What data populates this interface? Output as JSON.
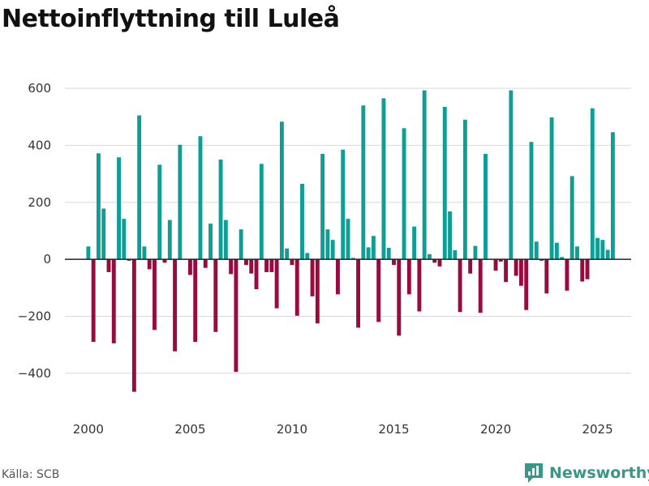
{
  "page": {
    "title": "Nettoinflyttning till Luleå",
    "source": "Källa: SCB",
    "brand": "Newsworthy"
  },
  "colors": {
    "positive": "#0e9e96",
    "negative": "#990a3e",
    "grid": "#d9d9d9",
    "zero": "#222222",
    "brand": "#3a9688"
  },
  "chart_data": {
    "type": "bar",
    "title": "Nettoinflyttning till Luleå",
    "xlabel": "",
    "ylabel": "",
    "xlim": [
      1998.85,
      2026.65
    ],
    "ylim": [
      -520,
      640
    ],
    "y_ticks": [
      600,
      400,
      200,
      0,
      -200,
      -400
    ],
    "y_tick_labels": [
      "600",
      "400",
      "200",
      "0",
      "−200",
      "−400"
    ],
    "x_ticks": [
      2000,
      2005,
      2010,
      2015,
      2020,
      2025
    ],
    "x_tick_labels": [
      "2000",
      "2005",
      "2010",
      "2015",
      "2020",
      "2025"
    ],
    "start_year": 2000.0,
    "step": 0.25,
    "period": "quarterly",
    "values": [
      45,
      -290,
      372,
      178,
      -45,
      -295,
      358,
      142,
      -5,
      -465,
      505,
      45,
      -35,
      -248,
      332,
      -12,
      138,
      -323,
      402,
      0,
      -55,
      -290,
      432,
      -30,
      125,
      -255,
      350,
      138,
      -52,
      -395,
      105,
      -20,
      -50,
      -105,
      335,
      -45,
      -45,
      -172,
      483,
      38,
      -20,
      -198,
      265,
      22,
      -130,
      -225,
      370,
      105,
      68,
      -123,
      385,
      142,
      5,
      -240,
      540,
      42,
      82,
      -220,
      565,
      40,
      -20,
      -268,
      460,
      -123,
      115,
      -183,
      593,
      18,
      -12,
      -25,
      535,
      168,
      32,
      -185,
      490,
      -50,
      47,
      -188,
      370,
      0,
      -40,
      -8,
      -80,
      593,
      -58,
      -93,
      -178,
      412,
      62,
      -5,
      -120,
      498,
      58,
      8,
      -110,
      292,
      45,
      -78,
      -70,
      530,
      75,
      68,
      33,
      446
    ]
  }
}
